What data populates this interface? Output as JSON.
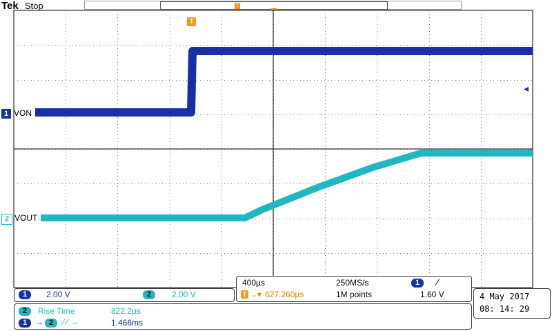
{
  "header": {
    "brand": "Tek",
    "status": "Stop"
  },
  "channels": {
    "ch1": {
      "number": "1",
      "label": "VON",
      "color": "#1730a8"
    },
    "ch2": {
      "number": "2",
      "label": "VOUT",
      "color": "#1fb7c2"
    }
  },
  "trigger": {
    "marker_glyph": "T"
  },
  "vertical": {
    "ch1_num": "1",
    "ch1_scale": "2.00 V",
    "ch2_num": "2",
    "ch2_scale": "2.00 V"
  },
  "horizontal": {
    "time_div": "400µs",
    "sample_rate": "250MS/s",
    "trig_ch_num": "1",
    "trig_slope": "⁄",
    "trig_glyph": "T",
    "trig_offset": "627.260µs",
    "record_length": "1M points",
    "trig_level": "1.60 V"
  },
  "measurements": {
    "m1_ch": "2",
    "m1_name": "Rise Time",
    "m1_value": "822.2µs",
    "m2_from": "1",
    "m2_to": "2",
    "m2_edges": "⁄ ⁄ →",
    "m2_value": "1.466ms"
  },
  "datetime": {
    "date": "4 May   2017",
    "time": "08: 14: 29"
  }
}
